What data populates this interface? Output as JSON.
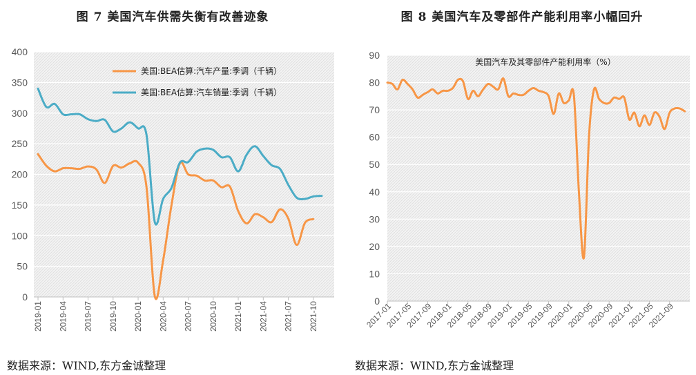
{
  "left": {
    "title": "图 7  美国汽车供需失衡有改善迹象",
    "source": "数据来源：WIND,东方金诚整理",
    "colors": {
      "production": "#F79646",
      "sales": "#4BACC6"
    },
    "chart_data": {
      "type": "line",
      "ylim": [
        0,
        400
      ],
      "yticks": [
        0,
        50,
        100,
        150,
        200,
        250,
        300,
        350,
        400
      ],
      "x_tick_labels": [
        "2019-01",
        "2019-04",
        "2019-07",
        "2019-10",
        "2020-01",
        "2020-04",
        "2020-07",
        "2020-10",
        "2021-01",
        "2021-04",
        "2021-07",
        "2021-10"
      ],
      "x": [
        "2019-01",
        "2019-02",
        "2019-03",
        "2019-04",
        "2019-05",
        "2019-06",
        "2019-07",
        "2019-08",
        "2019-09",
        "2019-10",
        "2019-11",
        "2019-12",
        "2020-01",
        "2020-02",
        "2020-03",
        "2020-04",
        "2020-05",
        "2020-06",
        "2020-07",
        "2020-08",
        "2020-09",
        "2020-10",
        "2020-11",
        "2020-12",
        "2021-01",
        "2021-02",
        "2021-03",
        "2021-04",
        "2021-05",
        "2021-06",
        "2021-07",
        "2021-08",
        "2021-09",
        "2021-10",
        "2021-11",
        "2021-12"
      ],
      "legend_position": "top-right",
      "grid": true,
      "series": [
        {
          "name": "美国:BEA估算:汽车产量:季调（千辆）",
          "values": [
            233,
            214,
            205,
            210,
            210,
            209,
            213,
            208,
            186,
            214,
            211,
            218,
            219,
            180,
            1,
            60,
            150,
            218,
            200,
            198,
            190,
            190,
            179,
            180,
            140,
            120,
            135,
            130,
            122,
            143,
            128,
            85,
            121,
            127,
            null,
            null
          ]
        },
        {
          "name": "美国:BEA估算:汽车销量:季调（千辆）",
          "values": [
            340,
            310,
            315,
            298,
            298,
            298,
            290,
            287,
            289,
            270,
            275,
            285,
            275,
            265,
            122,
            160,
            178,
            219,
            220,
            237,
            242,
            240,
            228,
            228,
            205,
            232,
            246,
            230,
            215,
            209,
            183,
            162,
            160,
            164,
            165,
            null
          ]
        }
      ]
    }
  },
  "right": {
    "title": "图 8  美国汽车及零部件产能利用率小幅回升",
    "source": "数据来源：WIND,东方金诚整理",
    "colors": {
      "series": "#F79646"
    },
    "chart_data": {
      "type": "line",
      "title": "美国汽车及其零部件产能利用率（%）",
      "ylim": [
        0,
        90
      ],
      "yticks": [
        0,
        10,
        20,
        30,
        40,
        50,
        60,
        70,
        80,
        90
      ],
      "x_tick_labels": [
        "2017-01",
        "2017-05",
        "2017-09",
        "2018-01",
        "2018-05",
        "2018-09",
        "2019-01",
        "2019-05",
        "2019-09",
        "2020-01",
        "2020-05",
        "2020-09",
        "2021-01",
        "2021-05",
        "2021-09"
      ],
      "x_start": "2017-01",
      "x_end": "2021-12",
      "grid": true,
      "series": [
        {
          "name": "",
          "values": [
            80,
            79.5,
            77.5,
            81,
            79.5,
            77.5,
            74.5,
            75.5,
            76.5,
            77.5,
            76,
            77,
            77,
            78,
            81,
            80.5,
            74,
            77,
            75,
            77.5,
            79.5,
            78.5,
            77.5,
            81.5,
            75,
            76,
            75.5,
            75.5,
            77,
            78,
            77,
            76.5,
            75,
            68.5,
            76,
            72.5,
            73.5,
            75.5,
            40,
            16,
            60,
            77.5,
            74,
            72.5,
            72.5,
            74.5,
            74,
            74.5,
            66.5,
            69,
            64,
            68,
            64.5,
            69,
            67.5,
            63,
            69,
            70.5,
            70.5,
            69.5
          ]
        }
      ]
    }
  }
}
